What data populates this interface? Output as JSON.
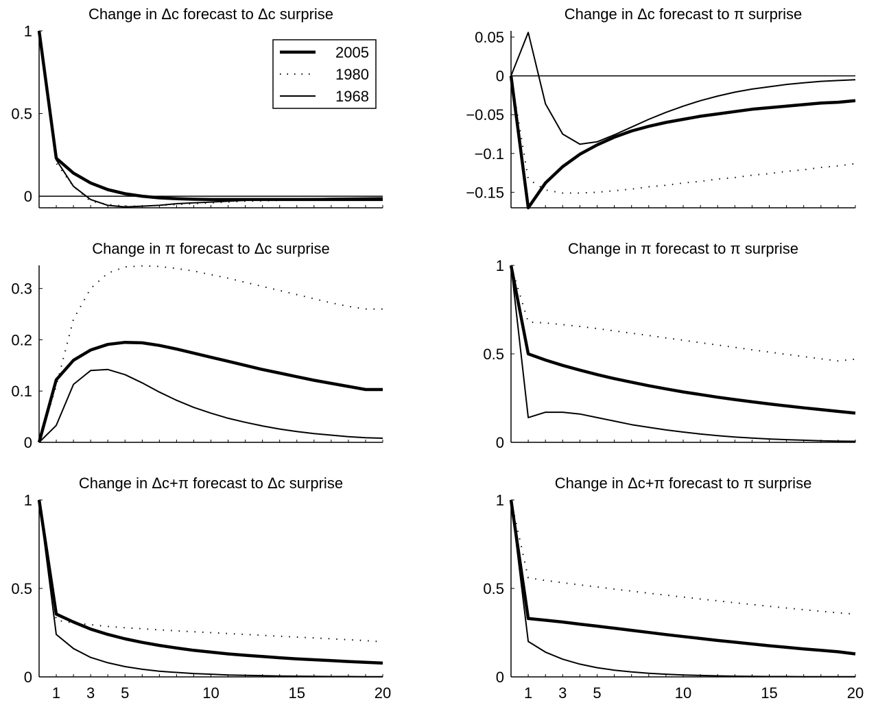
{
  "figure": {
    "legend": [
      {
        "label": "2005",
        "style": "thick"
      },
      {
        "label": "1980",
        "style": "dotted"
      },
      {
        "label": "1968",
        "style": "thin"
      }
    ]
  },
  "chart_data": [
    {
      "type": "line",
      "title": "Change in Δc forecast to Δc surprise",
      "xlim": [
        0,
        20
      ],
      "ylim": [
        -0.07,
        1.0
      ],
      "yticks": [
        0,
        0.5,
        1
      ],
      "ytick_labels": [
        "0",
        "0.5",
        "1"
      ],
      "xticks": [],
      "xtick_labels": [],
      "zero_line": true,
      "legend_position": "top-right",
      "x": [
        0,
        1,
        2,
        3,
        4,
        5,
        6,
        7,
        8,
        9,
        10,
        11,
        12,
        13,
        14,
        15,
        16,
        17,
        18,
        19,
        20
      ],
      "series": [
        {
          "name": "2005",
          "style": "thick",
          "values": [
            1.0,
            0.23,
            0.14,
            0.08,
            0.04,
            0.015,
            0.0,
            -0.01,
            -0.015,
            -0.018,
            -0.02,
            -0.02,
            -0.02,
            -0.02,
            -0.02,
            -0.02,
            -0.02,
            -0.02,
            -0.02,
            -0.02,
            -0.02
          ]
        },
        {
          "name": "1980",
          "style": "dotted",
          "values": [
            1.0,
            0.2,
            0.06,
            -0.03,
            -0.05,
            -0.06,
            -0.06,
            -0.055,
            -0.05,
            -0.045,
            -0.04,
            -0.035,
            -0.03,
            -0.028,
            -0.025,
            -0.022,
            -0.02,
            -0.018,
            -0.017,
            -0.015,
            -0.015
          ]
        },
        {
          "name": "1968",
          "style": "thin",
          "values": [
            1.0,
            0.22,
            0.06,
            -0.02,
            -0.055,
            -0.065,
            -0.06,
            -0.055,
            -0.045,
            -0.04,
            -0.035,
            -0.03,
            -0.025,
            -0.02,
            -0.018,
            -0.016,
            -0.015,
            -0.013,
            -0.012,
            -0.011,
            -0.01
          ]
        }
      ]
    },
    {
      "type": "line",
      "title": "Change in Δc forecast to π surprise",
      "xlim": [
        0,
        20
      ],
      "ylim": [
        -0.17,
        0.058
      ],
      "yticks": [
        0.05,
        0,
        -0.05,
        -0.1,
        -0.15
      ],
      "ytick_labels": [
        "0.05",
        "0",
        "−0.05",
        "−0.1",
        "−0.15"
      ],
      "xticks": [],
      "xtick_labels": [],
      "zero_line": true,
      "x": [
        0,
        1,
        2,
        3,
        4,
        5,
        6,
        7,
        8,
        9,
        10,
        11,
        12,
        13,
        14,
        15,
        16,
        17,
        18,
        19,
        20
      ],
      "series": [
        {
          "name": "2005",
          "style": "thick",
          "values": [
            0,
            -0.17,
            -0.138,
            -0.117,
            -0.101,
            -0.089,
            -0.079,
            -0.071,
            -0.065,
            -0.06,
            -0.056,
            -0.052,
            -0.049,
            -0.046,
            -0.043,
            -0.041,
            -0.039,
            -0.037,
            -0.035,
            -0.034,
            -0.032
          ]
        },
        {
          "name": "1980",
          "style": "dotted",
          "values": [
            0,
            -0.133,
            -0.147,
            -0.151,
            -0.151,
            -0.15,
            -0.148,
            -0.146,
            -0.143,
            -0.141,
            -0.138,
            -0.136,
            -0.133,
            -0.131,
            -0.128,
            -0.126,
            -0.123,
            -0.121,
            -0.118,
            -0.116,
            -0.113
          ]
        },
        {
          "name": "1968",
          "style": "thin",
          "values": [
            0,
            0.056,
            -0.036,
            -0.075,
            -0.088,
            -0.085,
            -0.076,
            -0.066,
            -0.056,
            -0.047,
            -0.039,
            -0.032,
            -0.026,
            -0.021,
            -0.017,
            -0.014,
            -0.011,
            -0.009,
            -0.007,
            -0.006,
            -0.005
          ]
        }
      ]
    },
    {
      "type": "line",
      "title": "Change in π forecast to Δc surprise",
      "xlim": [
        0,
        20
      ],
      "ylim": [
        0,
        0.345
      ],
      "yticks": [
        0,
        0.1,
        0.2,
        0.3
      ],
      "ytick_labels": [
        "0",
        "0.1",
        "0.2",
        "0.3"
      ],
      "xticks": [],
      "xtick_labels": [],
      "zero_line": false,
      "x": [
        0,
        1,
        2,
        3,
        4,
        5,
        6,
        7,
        8,
        9,
        10,
        11,
        12,
        13,
        14,
        15,
        16,
        17,
        18,
        19,
        20
      ],
      "series": [
        {
          "name": "2005",
          "style": "thick",
          "values": [
            0,
            0.122,
            0.16,
            0.18,
            0.191,
            0.195,
            0.194,
            0.189,
            0.182,
            0.174,
            0.166,
            0.158,
            0.15,
            0.142,
            0.135,
            0.128,
            0.121,
            0.115,
            0.109,
            0.103,
            0.103
          ]
        },
        {
          "name": "1980",
          "style": "dotted",
          "values": [
            0,
            0.11,
            0.24,
            0.3,
            0.33,
            0.342,
            0.344,
            0.343,
            0.339,
            0.334,
            0.327,
            0.32,
            0.312,
            0.304,
            0.296,
            0.288,
            0.28,
            0.272,
            0.265,
            0.26,
            0.26
          ]
        },
        {
          "name": "1968",
          "style": "thin",
          "values": [
            0,
            0.033,
            0.113,
            0.14,
            0.142,
            0.132,
            0.116,
            0.098,
            0.082,
            0.068,
            0.057,
            0.047,
            0.039,
            0.032,
            0.026,
            0.021,
            0.017,
            0.014,
            0.011,
            0.009,
            0.008
          ]
        }
      ]
    },
    {
      "type": "line",
      "title": "Change in π forecast to π surprise",
      "xlim": [
        0,
        20
      ],
      "ylim": [
        0,
        1.0
      ],
      "yticks": [
        0,
        0.5,
        1
      ],
      "ytick_labels": [
        "0",
        "0.5",
        "1"
      ],
      "xticks": [],
      "xtick_labels": [],
      "zero_line": false,
      "x": [
        0,
        1,
        2,
        3,
        4,
        5,
        6,
        7,
        8,
        9,
        10,
        11,
        12,
        13,
        14,
        15,
        16,
        17,
        18,
        19,
        20
      ],
      "series": [
        {
          "name": "2005",
          "style": "thick",
          "values": [
            1.0,
            0.5,
            0.465,
            0.435,
            0.408,
            0.383,
            0.36,
            0.34,
            0.32,
            0.302,
            0.285,
            0.27,
            0.255,
            0.242,
            0.229,
            0.217,
            0.206,
            0.195,
            0.185,
            0.175,
            0.165
          ]
        },
        {
          "name": "1980",
          "style": "dotted",
          "values": [
            1.0,
            0.68,
            0.675,
            0.665,
            0.655,
            0.643,
            0.63,
            0.617,
            0.604,
            0.59,
            0.577,
            0.563,
            0.55,
            0.537,
            0.523,
            0.51,
            0.497,
            0.485,
            0.472,
            0.46,
            0.47
          ]
        },
        {
          "name": "1968",
          "style": "thin",
          "values": [
            1.0,
            0.14,
            0.17,
            0.17,
            0.16,
            0.14,
            0.12,
            0.1,
            0.085,
            0.07,
            0.058,
            0.047,
            0.038,
            0.03,
            0.024,
            0.019,
            0.015,
            0.012,
            0.009,
            0.007,
            0.006
          ]
        }
      ]
    },
    {
      "type": "line",
      "title": "Change in Δc+π forecast to Δc surprise",
      "xlim": [
        0,
        20
      ],
      "ylim": [
        0,
        1.0
      ],
      "yticks": [
        0,
        0.5,
        1
      ],
      "ytick_labels": [
        "0",
        "0.5",
        "1"
      ],
      "xticks": [
        1,
        3,
        5,
        10,
        15,
        20
      ],
      "xtick_labels": [
        "1",
        "3",
        "5",
        "10",
        "15",
        "20"
      ],
      "zero_line": false,
      "x": [
        0,
        1,
        2,
        3,
        4,
        5,
        6,
        7,
        8,
        9,
        10,
        11,
        12,
        13,
        14,
        15,
        16,
        17,
        18,
        19,
        20
      ],
      "series": [
        {
          "name": "2005",
          "style": "thick",
          "values": [
            1.0,
            0.355,
            0.31,
            0.27,
            0.24,
            0.215,
            0.195,
            0.178,
            0.163,
            0.15,
            0.14,
            0.13,
            0.122,
            0.115,
            0.108,
            0.102,
            0.097,
            0.092,
            0.087,
            0.082,
            0.078
          ]
        },
        {
          "name": "1980",
          "style": "dotted",
          "values": [
            1.0,
            0.32,
            0.305,
            0.295,
            0.285,
            0.278,
            0.272,
            0.266,
            0.26,
            0.255,
            0.25,
            0.245,
            0.24,
            0.235,
            0.23,
            0.225,
            0.22,
            0.215,
            0.21,
            0.205,
            0.198
          ]
        },
        {
          "name": "1968",
          "style": "thin",
          "values": [
            1.0,
            0.24,
            0.16,
            0.11,
            0.08,
            0.058,
            0.043,
            0.032,
            0.025,
            0.019,
            0.015,
            0.011,
            0.009,
            0.007,
            0.005,
            0.004,
            0.003,
            0.002,
            0.002,
            0.001,
            0.001
          ]
        }
      ]
    },
    {
      "type": "line",
      "title": "Change in Δc+π forecast to π surprise",
      "xlim": [
        0,
        20
      ],
      "ylim": [
        0,
        1.0
      ],
      "yticks": [
        0,
        0.5,
        1
      ],
      "ytick_labels": [
        "0",
        "0.5",
        "1"
      ],
      "xticks": [
        1,
        3,
        5,
        10,
        15,
        20
      ],
      "xtick_labels": [
        "1",
        "3",
        "5",
        "10",
        "15",
        "20"
      ],
      "zero_line": false,
      "x": [
        0,
        1,
        2,
        3,
        4,
        5,
        6,
        7,
        8,
        9,
        10,
        11,
        12,
        13,
        14,
        15,
        16,
        17,
        18,
        19,
        20
      ],
      "series": [
        {
          "name": "2005",
          "style": "thick",
          "values": [
            1.0,
            0.33,
            0.32,
            0.31,
            0.298,
            0.287,
            0.275,
            0.263,
            0.251,
            0.239,
            0.228,
            0.217,
            0.206,
            0.196,
            0.186,
            0.176,
            0.167,
            0.158,
            0.15,
            0.142,
            0.13
          ]
        },
        {
          "name": "1980",
          "style": "dotted",
          "values": [
            1.0,
            0.56,
            0.545,
            0.532,
            0.52,
            0.508,
            0.496,
            0.485,
            0.473,
            0.462,
            0.451,
            0.44,
            0.43,
            0.419,
            0.409,
            0.399,
            0.389,
            0.38,
            0.371,
            0.362,
            0.355
          ]
        },
        {
          "name": "1968",
          "style": "thin",
          "values": [
            1.0,
            0.2,
            0.14,
            0.1,
            0.072,
            0.052,
            0.038,
            0.028,
            0.02,
            0.015,
            0.011,
            0.008,
            0.006,
            0.004,
            0.003,
            0.002,
            0.002,
            0.001,
            0.001,
            0.001,
            0.001
          ]
        }
      ]
    }
  ]
}
